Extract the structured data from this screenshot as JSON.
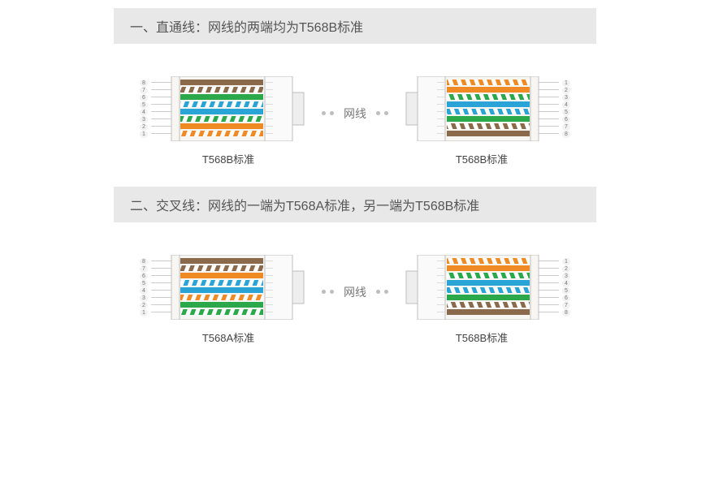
{
  "sections": [
    {
      "title": "一、直通线：网线的两端均为T568B标准",
      "cable_label": "网线",
      "left": {
        "standard": "T568B",
        "label": "T568B标准",
        "facing": "left"
      },
      "right": {
        "standard": "T568B",
        "label": "T568B标准",
        "facing": "right"
      }
    },
    {
      "title": "二、交叉线：网线的一端为T568A标准，另一端为T568B标准",
      "cable_label": "网线",
      "left": {
        "standard": "T568A",
        "label": "T568A标准",
        "facing": "left"
      },
      "right": {
        "standard": "T568B",
        "label": "T568B标准",
        "facing": "right"
      }
    }
  ],
  "standards": {
    "T568B": {
      "wires": [
        {
          "type": "striped",
          "color": "#f08a24"
        },
        {
          "type": "solid",
          "color": "#f08a24"
        },
        {
          "type": "striped",
          "color": "#2aa84a"
        },
        {
          "type": "solid",
          "color": "#2aa3d6"
        },
        {
          "type": "striped",
          "color": "#2aa3d6"
        },
        {
          "type": "solid",
          "color": "#2aa84a"
        },
        {
          "type": "striped",
          "color": "#8a6a4a"
        },
        {
          "type": "solid",
          "color": "#8a6a4a"
        }
      ]
    },
    "T568A": {
      "wires": [
        {
          "type": "striped",
          "color": "#2aa84a"
        },
        {
          "type": "solid",
          "color": "#2aa84a"
        },
        {
          "type": "striped",
          "color": "#f08a24"
        },
        {
          "type": "solid",
          "color": "#2aa3d6"
        },
        {
          "type": "striped",
          "color": "#2aa3d6"
        },
        {
          "type": "solid",
          "color": "#f08a24"
        },
        {
          "type": "striped",
          "color": "#8a6a4a"
        },
        {
          "type": "solid",
          "color": "#8a6a4a"
        }
      ]
    }
  },
  "style": {
    "connector": {
      "body_fill": "#f7f6f3",
      "body_stroke": "#bfbfbf",
      "plug_fill": "#fafafa",
      "clip_fill": "#eeeeee",
      "wire_height": 7,
      "wire_gap": 2,
      "stripe_white": "#ffffff",
      "pin_lead_color": "#cccccc"
    },
    "header_bg": "#e8e8e8",
    "dot_color": "#bdbdbd"
  },
  "pin_numbers_left_order": [
    "8",
    "7",
    "6",
    "5",
    "4",
    "3",
    "2",
    "1"
  ],
  "pin_numbers_right_order": [
    "1",
    "2",
    "3",
    "4",
    "5",
    "6",
    "7",
    "8"
  ]
}
